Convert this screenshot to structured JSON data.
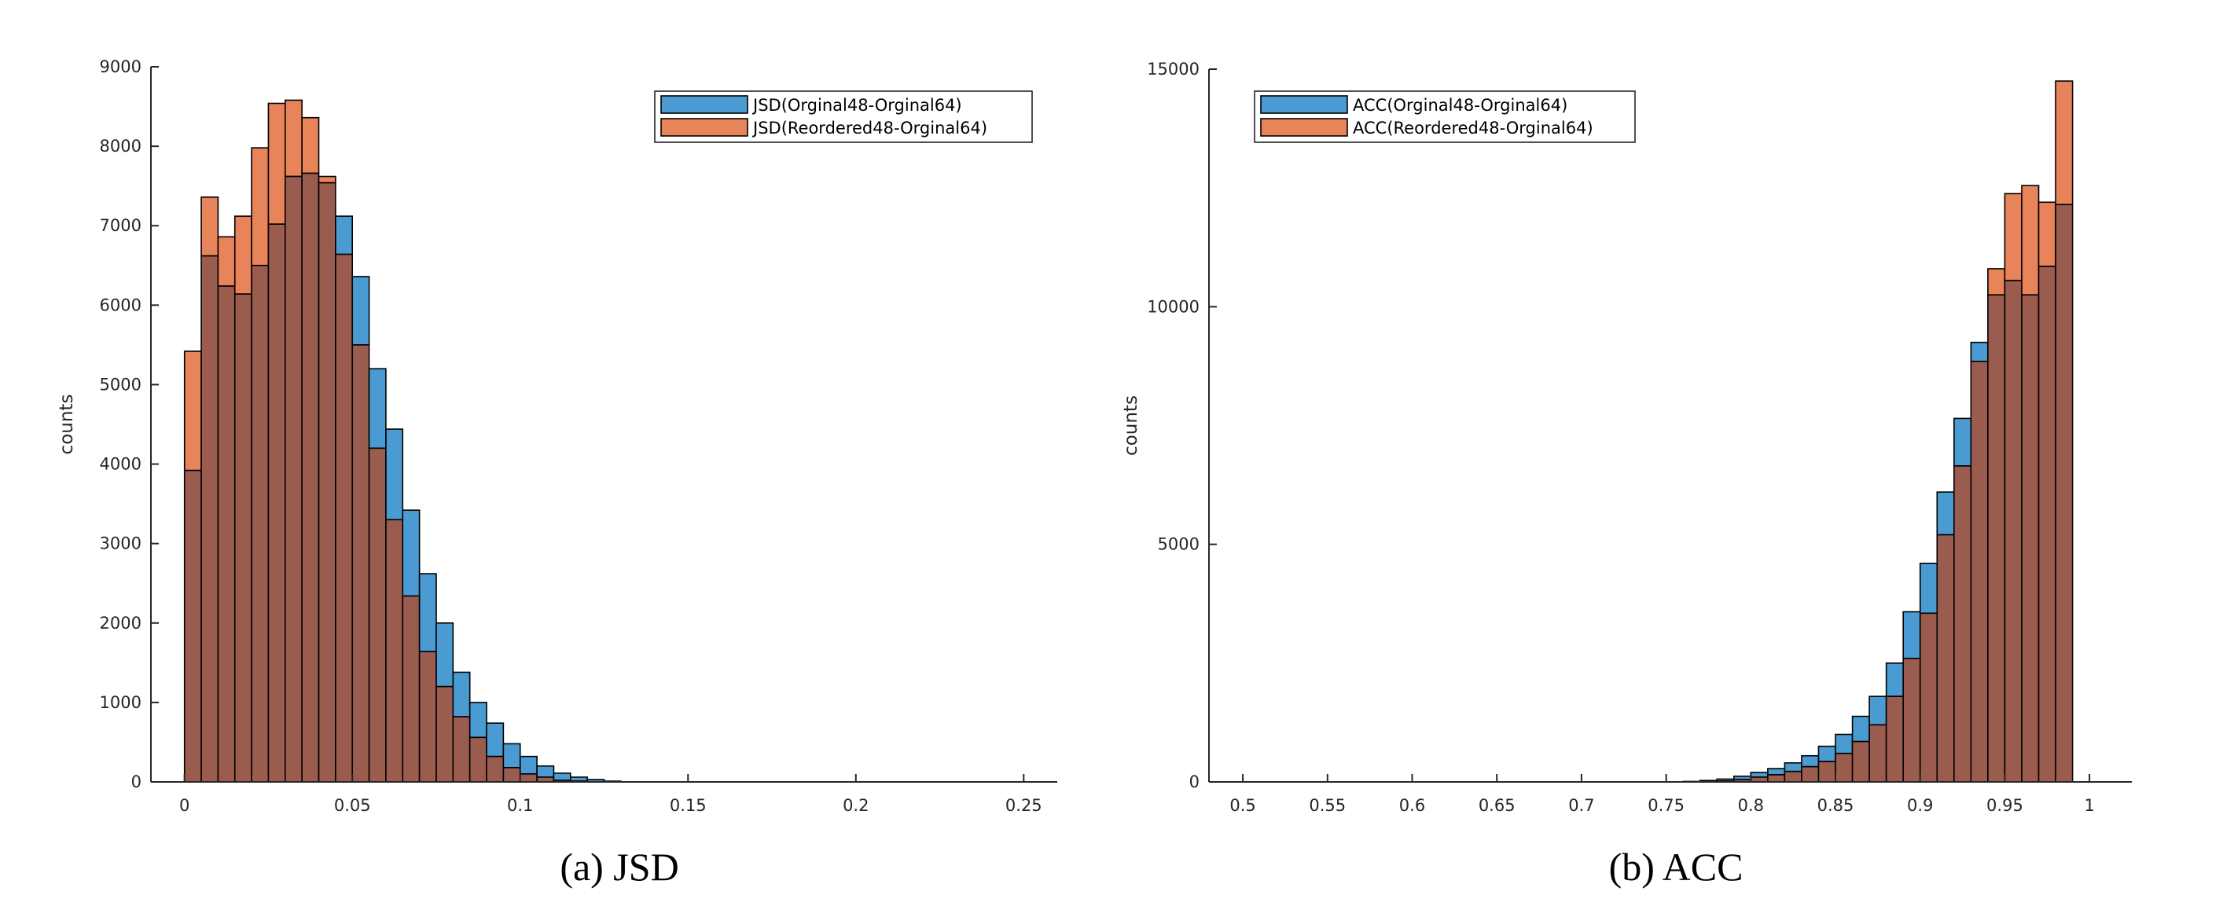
{
  "colors": {
    "series1": "#4a9bd1",
    "series2": "#e8845a",
    "overlap": "#9a5c4f",
    "axis": "#262626"
  },
  "chart_data": [
    {
      "type": "bar",
      "caption": "(a) JSD",
      "title": "",
      "xlabel": "",
      "ylabel": "counts",
      "xlim": [
        -0.01,
        0.26
      ],
      "ylim": [
        0,
        9000
      ],
      "xticks": [
        0,
        0.05,
        0.1,
        0.15,
        0.2,
        0.25
      ],
      "xtick_labels": [
        "0",
        "0.05",
        "0.1",
        "0.15",
        "0.2",
        "0.25"
      ],
      "yticks": [
        0,
        1000,
        2000,
        3000,
        4000,
        5000,
        6000,
        7000,
        8000,
        9000
      ],
      "ytick_labels": [
        "0",
        "1000",
        "2000",
        "3000",
        "4000",
        "5000",
        "6000",
        "7000",
        "8000",
        "9000"
      ],
      "bin_start": 0,
      "bin_width": 0.005,
      "legend_position": "top-right",
      "series": [
        {
          "name": "JSD(Orginal48-Orginal64)",
          "values": [
            3920,
            6620,
            6240,
            6140,
            6500,
            7020,
            7620,
            7660,
            7540,
            7120,
            6360,
            5200,
            4440,
            3420,
            2620,
            2000,
            1380,
            1000,
            740,
            480,
            320,
            200,
            110,
            60,
            30,
            10
          ]
        },
        {
          "name": "JSD(Reordered48-Orginal64)",
          "values": [
            5420,
            7360,
            6860,
            7120,
            7980,
            8540,
            8580,
            8360,
            7620,
            6640,
            5500,
            4200,
            3300,
            2340,
            1640,
            1200,
            820,
            560,
            320,
            180,
            100,
            60,
            20,
            10,
            0,
            0
          ]
        }
      ]
    },
    {
      "type": "bar",
      "caption": "(b) ACC",
      "title": "",
      "xlabel": "",
      "ylabel": "counts",
      "xlim": [
        0.48,
        1.025
      ],
      "ylim": [
        0,
        15000
      ],
      "xticks": [
        0.5,
        0.55,
        0.6,
        0.65,
        0.7,
        0.75,
        0.8,
        0.85,
        0.9,
        0.95,
        1
      ],
      "xtick_labels": [
        "0.5",
        "0.55",
        "0.6",
        "0.65",
        "0.7",
        "0.75",
        "0.8",
        "0.85",
        "0.9",
        "0.95",
        "1"
      ],
      "yticks": [
        0,
        5000,
        10000,
        15000
      ],
      "ytick_labels": [
        "0",
        "5000",
        "10000",
        "15000"
      ],
      "bin_start": 0.76,
      "bin_width": 0.01,
      "legend_position": "top-left",
      "series": [
        {
          "name": "ACC(Orginal48-Orginal64)",
          "values": [
            10,
            30,
            60,
            120,
            200,
            280,
            400,
            550,
            750,
            1000,
            1380,
            1800,
            2500,
            3580,
            4600,
            6100,
            7650,
            9250,
            10250,
            10550,
            10250,
            10850,
            12150
          ]
        },
        {
          "name": "ACC(Reordered48-Orginal64)",
          "values": [
            0,
            10,
            20,
            50,
            100,
            150,
            220,
            320,
            430,
            600,
            850,
            1200,
            1800,
            2600,
            3550,
            5200,
            6650,
            8850,
            10800,
            12380,
            12550,
            12200,
            14750
          ]
        }
      ]
    }
  ]
}
